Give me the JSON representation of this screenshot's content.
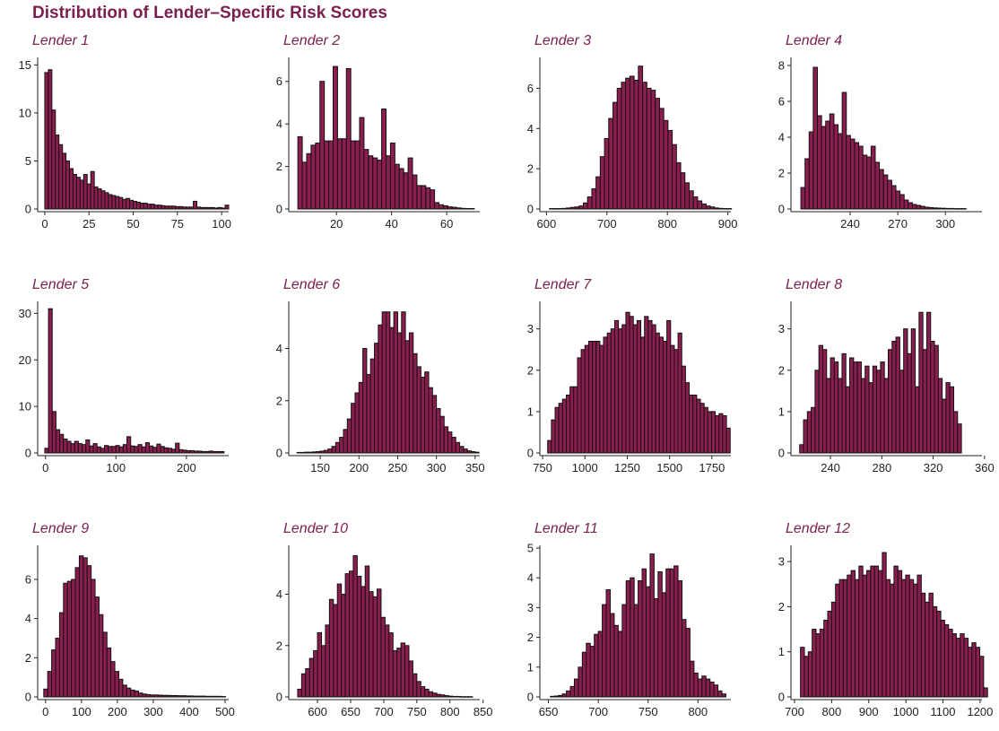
{
  "title": "Distribution of Lender–Specific Risk Scores",
  "colors": {
    "bar_fill": "#8b1e4f",
    "bar_stroke": "#111111",
    "title": "#7b1f4e"
  },
  "chart_data": [
    {
      "type": "bar",
      "title": "Lender 1",
      "x_range": [
        -2,
        104
      ],
      "ylim": [
        0,
        15.5
      ],
      "xticks": [
        0,
        25,
        50,
        75,
        100
      ],
      "yticks": [
        0,
        5,
        10,
        15
      ],
      "bin_start": 0,
      "bin_width": 2,
      "values": [
        14.2,
        14.5,
        10.3,
        7.7,
        6.7,
        5.8,
        5.0,
        4.2,
        3.6,
        3.3,
        3.0,
        3.6,
        2.6,
        3.9,
        2.3,
        2.1,
        1.9,
        1.7,
        1.5,
        1.4,
        1.3,
        1.2,
        1.0,
        1.1,
        0.9,
        0.8,
        0.7,
        0.6,
        0.6,
        0.5,
        0.5,
        0.4,
        0.4,
        0.35,
        0.3,
        0.3,
        0.3,
        0.25,
        0.25,
        0.2,
        0.2,
        0.2,
        0.8,
        0.2,
        0.15,
        0.15,
        0.15,
        0.15,
        0.1,
        0.15,
        0.1,
        0.4
      ]
    },
    {
      "type": "bar",
      "title": "Lender 2",
      "x_range": [
        4,
        72
      ],
      "ylim": [
        0,
        7.0
      ],
      "xticks": [
        20,
        40,
        60
      ],
      "yticks": [
        0,
        2,
        4,
        6
      ],
      "bin_start": 6,
      "bin_width": 1.6,
      "values": [
        3.4,
        2.2,
        2.6,
        3.0,
        3.1,
        6.0,
        3.2,
        3.2,
        6.7,
        3.3,
        3.3,
        6.6,
        3.2,
        3.2,
        4.3,
        2.8,
        2.5,
        2.4,
        2.3,
        4.7,
        2.5,
        3.1,
        2.1,
        1.9,
        1.7,
        2.4,
        1.6,
        1.1,
        1.1,
        1.0,
        0.9,
        0.3,
        0.2,
        0.15,
        0.1,
        0.08,
        0.05,
        0.03,
        0.02,
        0.02
      ]
    },
    {
      "type": "bar",
      "title": "Lender 3",
      "x_range": [
        595,
        905
      ],
      "ylim": [
        0,
        7.4
      ],
      "xticks": [
        600,
        700,
        800,
        900
      ],
      "yticks": [
        0,
        2,
        4,
        6
      ],
      "bin_start": 605,
      "bin_width": 7,
      "values": [
        0.02,
        0.02,
        0.02,
        0.03,
        0.05,
        0.08,
        0.1,
        0.15,
        0.3,
        0.6,
        1.0,
        1.6,
        2.6,
        3.5,
        4.5,
        5.3,
        6.0,
        6.3,
        6.5,
        6.6,
        6.4,
        7.1,
        6.3,
        6.0,
        5.9,
        5.5,
        5.0,
        4.4,
        3.9,
        3.2,
        2.3,
        1.8,
        1.3,
        0.9,
        0.6,
        0.4,
        0.25,
        0.15,
        0.1,
        0.05,
        0.03,
        0.02,
        0.02
      ]
    },
    {
      "type": "bar",
      "title": "Lender 4",
      "x_range": [
        205,
        323
      ],
      "ylim": [
        0,
        8.3
      ],
      "xticks": [
        240,
        270,
        300
      ],
      "yticks": [
        0,
        2,
        4,
        6,
        8
      ],
      "bin_start": 209,
      "bin_width": 2.6,
      "values": [
        1.2,
        2.8,
        4.3,
        7.9,
        5.2,
        4.6,
        4.9,
        5.3,
        4.7,
        4.2,
        6.5,
        4.1,
        3.9,
        3.7,
        3.5,
        3.0,
        2.9,
        3.5,
        2.6,
        2.2,
        1.9,
        1.6,
        1.3,
        1.0,
        0.8,
        0.5,
        0.35,
        0.25,
        0.2,
        0.15,
        0.1,
        0.08,
        0.06,
        0.05,
        0.04,
        0.03,
        0.03,
        0.02,
        0.02,
        0.02
      ]
    },
    {
      "type": "bar",
      "title": "Lender 5",
      "x_range": [
        -6,
        260
      ],
      "ylim": [
        0,
        32
      ],
      "xticks": [
        0,
        100,
        200
      ],
      "yticks": [
        0,
        10,
        20,
        30
      ],
      "bin_start": -1,
      "bin_width": 5.3,
      "values": [
        1.0,
        31.0,
        8.9,
        5.0,
        4.0,
        3.0,
        2.5,
        2.0,
        2.5,
        2.0,
        1.8,
        2.8,
        1.5,
        2.0,
        1.3,
        1.0,
        1.6,
        1.4,
        1.4,
        1.6,
        1.3,
        1.8,
        3.5,
        1.5,
        1.4,
        1.8,
        1.3,
        2.2,
        1.5,
        1.2,
        1.9,
        1.4,
        1.1,
        1.0,
        0.8,
        2.1,
        0.7,
        0.6,
        0.5,
        0.5,
        0.4,
        0.4,
        0.3,
        0.3,
        0.4,
        0.3,
        0.3,
        0.3
      ]
    },
    {
      "type": "bar",
      "title": "Lender 6",
      "x_range": [
        114,
        356
      ],
      "ylim": [
        0,
        5.7
      ],
      "xticks": [
        150,
        200,
        250,
        300,
        350
      ],
      "yticks": [
        0,
        2,
        4
      ],
      "bin_start": 120,
      "bin_width": 5,
      "values": [
        0.02,
        0.02,
        0.03,
        0.03,
        0.04,
        0.05,
        0.07,
        0.1,
        0.15,
        0.25,
        0.4,
        0.6,
        0.9,
        1.3,
        1.9,
        2.3,
        2.7,
        4.0,
        3.0,
        3.6,
        4.2,
        4.9,
        5.4,
        5.4,
        4.8,
        5.4,
        4.6,
        5.4,
        4.3,
        4.6,
        3.8,
        3.3,
        2.9,
        3.1,
        2.5,
        2.2,
        1.7,
        1.4,
        1.0,
        0.8,
        0.6,
        0.4,
        0.25,
        0.15,
        0.08,
        0.05,
        0.03
      ]
    },
    {
      "type": "bar",
      "title": "Lender 7",
      "x_range": [
        755,
        1862
      ],
      "ylim": [
        0,
        3.6
      ],
      "xticks": [
        750,
        1000,
        1250,
        1500,
        1750
      ],
      "yticks": [
        0,
        1,
        2,
        3
      ],
      "bin_start": 780,
      "bin_width": 22,
      "values": [
        0.3,
        0.8,
        1.1,
        1.2,
        1.3,
        1.4,
        1.6,
        1.6,
        2.3,
        2.5,
        2.6,
        2.7,
        2.7,
        2.7,
        2.6,
        2.8,
        2.9,
        3.0,
        3.2,
        3.0,
        3.1,
        3.4,
        3.3,
        3.1,
        3.2,
        2.8,
        3.3,
        3.2,
        3.1,
        2.9,
        2.8,
        2.7,
        3.2,
        2.6,
        2.5,
        2.9,
        2.1,
        1.7,
        1.4,
        1.4,
        1.3,
        1.2,
        1.1,
        1.0,
        1.0,
        0.9,
        0.95,
        0.9,
        0.6
      ]
    },
    {
      "type": "bar",
      "title": "Lender 8",
      "x_range": [
        212,
        358
      ],
      "ylim": [
        0,
        3.6
      ],
      "xticks": [
        240,
        280,
        320,
        360
      ],
      "yticks": [
        0,
        1,
        2,
        3
      ],
      "bin_start": 216,
      "bin_width": 3,
      "values": [
        0.2,
        0.8,
        1.0,
        1.1,
        2.0,
        2.6,
        2.5,
        1.8,
        2.3,
        2.2,
        1.8,
        2.4,
        1.6,
        2.3,
        2.2,
        2.2,
        1.8,
        2.1,
        1.7,
        2.1,
        2.0,
        2.2,
        1.8,
        2.5,
        2.7,
        2.8,
        2.0,
        3.0,
        2.4,
        3.0,
        1.6,
        3.4,
        2.5,
        3.4,
        2.7,
        2.6,
        1.8,
        1.3,
        1.7,
        1.6,
        1.0,
        0.7
      ]
    },
    {
      "type": "bar",
      "title": "Lender 9",
      "x_range": [
        -12,
        510
      ],
      "ylim": [
        0,
        7.6
      ],
      "xticks": [
        0,
        100,
        200,
        300,
        400,
        500
      ],
      "yticks": [
        0,
        2,
        4,
        6
      ],
      "bin_start": -5,
      "bin_width": 11,
      "values": [
        0.4,
        1.3,
        2.4,
        3.0,
        4.3,
        5.8,
        5.9,
        6.0,
        6.6,
        7.2,
        7.1,
        6.7,
        6.0,
        5.1,
        4.2,
        3.3,
        2.5,
        1.8,
        1.3,
        0.9,
        0.6,
        0.45,
        0.35,
        0.3,
        0.2,
        0.15,
        0.12,
        0.1,
        0.1,
        0.09,
        0.08,
        0.08,
        0.07,
        0.07,
        0.06,
        0.06,
        0.05,
        0.05,
        0.04,
        0.04,
        0.04,
        0.03,
        0.03,
        0.03,
        0.03,
        0.02
      ]
    },
    {
      "type": "bar",
      "title": "Lender 10",
      "x_range": [
        562,
        845
      ],
      "ylim": [
        0,
        5.8
      ],
      "xticks": [
        600,
        650,
        700,
        750,
        800,
        850
      ],
      "yticks": [
        0,
        2,
        4
      ],
      "bin_start": 570,
      "bin_width": 6,
      "values": [
        0.3,
        0.9,
        1.1,
        1.5,
        1.8,
        2.5,
        2.0,
        2.8,
        3.8,
        3.6,
        4.4,
        4.0,
        4.8,
        4.9,
        5.5,
        4.7,
        4.3,
        5.1,
        4.1,
        3.9,
        4.2,
        3.1,
        2.8,
        2.5,
        1.8,
        1.9,
        2.1,
        2.0,
        1.4,
        0.9,
        0.6,
        0.4,
        0.3,
        0.2,
        0.15,
        0.1,
        0.08,
        0.05,
        0.03,
        0.02,
        0.02,
        0.01,
        0.01,
        0.01
      ]
    },
    {
      "type": "bar",
      "title": "Lender 11",
      "x_range": [
        645,
        833
      ],
      "ylim": [
        0,
        5.0
      ],
      "xticks": [
        650,
        700,
        750,
        800
      ],
      "yticks": [
        0,
        1,
        2,
        3,
        4,
        5
      ],
      "bin_start": 652,
      "bin_width": 4,
      "values": [
        0.02,
        0.03,
        0.05,
        0.1,
        0.2,
        0.35,
        0.6,
        1.0,
        1.5,
        1.8,
        1.7,
        2.1,
        2.2,
        3.1,
        3.6,
        2.8,
        2.4,
        2.2,
        3.1,
        3.9,
        4.0,
        3.1,
        3.9,
        4.3,
        3.7,
        4.8,
        3.3,
        4.2,
        3.5,
        4.3,
        4.3,
        4.4,
        3.9,
        2.6,
        2.3,
        1.2,
        0.8,
        0.6,
        0.7,
        0.6,
        0.5,
        0.4,
        0.2,
        0.1
      ]
    },
    {
      "type": "bar",
      "title": "Lender 12",
      "x_range": [
        700,
        1205
      ],
      "ylim": [
        0,
        3.3
      ],
      "xticks": [
        700,
        800,
        900,
        1000,
        1100,
        1200
      ],
      "yticks": [
        0,
        1,
        2,
        3
      ],
      "bin_start": 716,
      "bin_width": 10.5,
      "values": [
        1.1,
        0.9,
        1.0,
        1.5,
        1.4,
        1.5,
        1.7,
        1.9,
        2.1,
        2.5,
        2.6,
        2.6,
        2.7,
        2.8,
        2.6,
        2.9,
        2.7,
        2.8,
        2.9,
        2.9,
        2.8,
        3.2,
        2.6,
        2.5,
        2.9,
        2.8,
        2.6,
        2.7,
        2.6,
        2.5,
        2.7,
        2.3,
        2.1,
        2.3,
        2.0,
        1.9,
        1.7,
        1.6,
        1.5,
        1.4,
        1.3,
        1.4,
        1.3,
        1.1,
        1.2,
        1.1,
        0.9,
        0.2
      ]
    }
  ]
}
